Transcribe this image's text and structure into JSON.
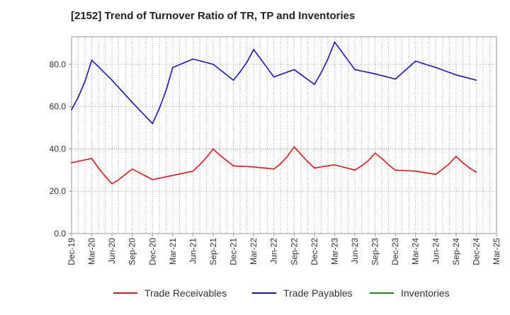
{
  "chart_data": {
    "type": "line",
    "title": "[2152]  Trend of Turnover Ratio of TR, TP and Inventories",
    "xlabel": "",
    "ylabel": "",
    "ylim": [
      0,
      93
    ],
    "yticks": [
      0.0,
      20.0,
      40.0,
      60.0,
      80.0
    ],
    "ytick_labels": [
      "0.0",
      "20.0",
      "40.0",
      "60.0",
      "80.0"
    ],
    "grid": true,
    "legend_position": "bottom",
    "x": [
      "Dec-19",
      "Jan-20",
      "Feb-20",
      "Mar-20",
      "Apr-20",
      "May-20",
      "Jun-20",
      "Jul-20",
      "Aug-20",
      "Sep-20",
      "Oct-20",
      "Nov-20",
      "Dec-20",
      "Jan-21",
      "Feb-21",
      "Mar-21",
      "Apr-21",
      "May-21",
      "Jun-21",
      "Jul-21",
      "Aug-21",
      "Sep-21",
      "Oct-21",
      "Nov-21",
      "Dec-21",
      "Jan-22",
      "Feb-22",
      "Mar-22",
      "Apr-22",
      "May-22",
      "Jun-22",
      "Jul-22",
      "Aug-22",
      "Sep-22",
      "Oct-22",
      "Nov-22",
      "Dec-22",
      "Jan-23",
      "Feb-23",
      "Mar-23",
      "Apr-23",
      "May-23",
      "Jun-23",
      "Jul-23",
      "Aug-23",
      "Sep-23",
      "Oct-23",
      "Nov-23",
      "Dec-23",
      "Jan-24",
      "Feb-24",
      "Mar-24",
      "Apr-24",
      "May-24",
      "Jun-24",
      "Jul-24",
      "Aug-24",
      "Sep-24",
      "Oct-24",
      "Nov-24",
      "Dec-24",
      "Jan-25",
      "Feb-25",
      "Mar-25"
    ],
    "xtick_labels": [
      "Dec-19",
      "Mar-20",
      "Jun-20",
      "Sep-20",
      "Dec-20",
      "Mar-21",
      "Jun-21",
      "Sep-21",
      "Dec-21",
      "Mar-22",
      "Jun-22",
      "Sep-22",
      "Dec-22",
      "Mar-23",
      "Jun-23",
      "Sep-23",
      "Dec-23",
      "Mar-24",
      "Jun-24",
      "Sep-24",
      "Dec-24",
      "Mar-25"
    ],
    "series": [
      {
        "name": "Trade Receivables",
        "color": "#e8141a",
        "points": [
          [
            "Dec-19",
            33.5
          ],
          [
            "Mar-20",
            35.5
          ],
          [
            "Apr-20",
            31.0
          ],
          [
            "May-20",
            27.0
          ],
          [
            "Jun-20",
            23.5
          ],
          [
            "Jul-20",
            25.5
          ],
          [
            "Aug-20",
            28.0
          ],
          [
            "Sep-20",
            30.5
          ],
          [
            "Dec-20",
            25.5
          ],
          [
            "Mar-21",
            27.5
          ],
          [
            "Jun-21",
            29.5
          ],
          [
            "Jul-21",
            32.5
          ],
          [
            "Aug-21",
            36.0
          ],
          [
            "Sep-21",
            40.0
          ],
          [
            "Oct-21",
            37.0
          ],
          [
            "Nov-21",
            34.5
          ],
          [
            "Dec-21",
            32.0
          ],
          [
            "Mar-22",
            31.5
          ],
          [
            "Jun-22",
            30.5
          ],
          [
            "Jul-22",
            33.0
          ],
          [
            "Aug-22",
            36.5
          ],
          [
            "Sep-22",
            41.0
          ],
          [
            "Oct-22",
            37.5
          ],
          [
            "Nov-22",
            34.0
          ],
          [
            "Dec-22",
            31.0
          ],
          [
            "Mar-23",
            32.5
          ],
          [
            "Jun-23",
            30.0
          ],
          [
            "Jul-23",
            32.0
          ],
          [
            "Aug-23",
            34.5
          ],
          [
            "Sep-23",
            38.0
          ],
          [
            "Oct-23",
            35.5
          ],
          [
            "Nov-23",
            32.5
          ],
          [
            "Dec-23",
            30.0
          ],
          [
            "Mar-24",
            29.5
          ],
          [
            "Jun-24",
            28.0
          ],
          [
            "Jul-24",
            30.5
          ],
          [
            "Aug-24",
            33.0
          ],
          [
            "Sep-24",
            36.5
          ],
          [
            "Oct-24",
            33.5
          ],
          [
            "Nov-24",
            31.0
          ],
          [
            "Dec-24",
            29.0
          ]
        ]
      },
      {
        "name": "Trade Payables",
        "color": "#1414d2",
        "points": [
          [
            "Dec-19",
            58.5
          ],
          [
            "Jan-20",
            64.5
          ],
          [
            "Feb-20",
            72.0
          ],
          [
            "Mar-20",
            82.0
          ],
          [
            "Jun-20",
            72.5
          ],
          [
            "Sep-20",
            62.0
          ],
          [
            "Dec-20",
            52.0
          ],
          [
            "Jan-21",
            59.0
          ],
          [
            "Feb-21",
            67.5
          ],
          [
            "Mar-21",
            78.5
          ],
          [
            "Jun-21",
            82.5
          ],
          [
            "Sep-21",
            80.0
          ],
          [
            "Dec-21",
            72.5
          ],
          [
            "Jan-22",
            76.5
          ],
          [
            "Feb-22",
            81.0
          ],
          [
            "Mar-22",
            87.0
          ],
          [
            "Jun-22",
            74.0
          ],
          [
            "Sep-22",
            77.5
          ],
          [
            "Dec-22",
            70.5
          ],
          [
            "Jan-23",
            76.0
          ],
          [
            "Feb-23",
            82.5
          ],
          [
            "Mar-23",
            90.5
          ],
          [
            "Jun-23",
            77.5
          ],
          [
            "Sep-23",
            75.5
          ],
          [
            "Dec-23",
            73.0
          ],
          [
            "Mar-24",
            81.5
          ],
          [
            "Jun-24",
            78.5
          ],
          [
            "Sep-24",
            75.0
          ],
          [
            "Dec-24",
            72.5
          ]
        ]
      },
      {
        "name": "Inventories",
        "color": "#1e8c1e",
        "points": []
      }
    ]
  }
}
